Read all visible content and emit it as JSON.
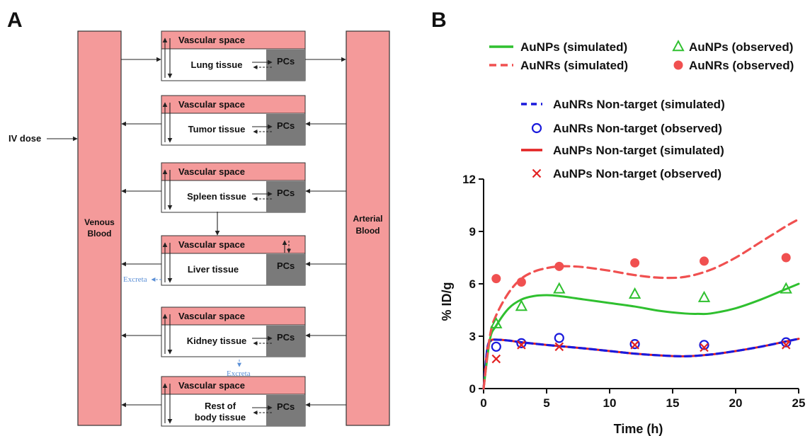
{
  "panel_a": {
    "letter": "A",
    "iv_dose": "IV dose",
    "venous": [
      "Venous",
      "Blood"
    ],
    "arterial": [
      "Arterial",
      "Blood"
    ],
    "vascular_label": "Vascular space",
    "pcs_label": "PCs",
    "excreta_label": "Excreta",
    "compartments": [
      {
        "tissue": "Lung tissue"
      },
      {
        "tissue": "Tumor tissue"
      },
      {
        "tissue": "Spleen tissue"
      },
      {
        "tissue": "Liver  tissue"
      },
      {
        "tissue": "Kidney tissue"
      },
      {
        "tissue": [
          "Rest of",
          "body tissue"
        ]
      }
    ]
  },
  "panel_b": {
    "letter": "B",
    "legend": [
      {
        "label": "AuNPs (simulated)",
        "color": "#2fc02f",
        "style": "solid-line"
      },
      {
        "label": "AuNPs (observed)",
        "color": "#2fc02f",
        "style": "open-triangle"
      },
      {
        "label": "AuNRs (simulated)",
        "color": "#f05050",
        "style": "dashed-line"
      },
      {
        "label": "AuNRs (observed)",
        "color": "#f05050",
        "style": "filled-circle"
      },
      {
        "label": "AuNRs Non-target (simulated)",
        "color": "#1a1adc",
        "style": "dashed-line"
      },
      {
        "label": "AuNRs Non-target (observed)",
        "color": "#1a1adc",
        "style": "open-circle"
      },
      {
        "label": "AuNPs Non-target (simulated)",
        "color": "#e32222",
        "style": "solid-line"
      },
      {
        "label": "AuNPs Non-target (observed)",
        "color": "#e32222",
        "style": "cross"
      }
    ]
  },
  "chart_data": {
    "type": "line",
    "xlabel": "Time (h)",
    "ylabel": "% ID/g",
    "xlim": [
      0,
      25
    ],
    "ylim": [
      0,
      12
    ],
    "xticks": [
      0,
      5,
      10,
      15,
      20,
      25
    ],
    "yticks": [
      0,
      3,
      6,
      9,
      12
    ],
    "series": [
      {
        "name": "AuNPs (simulated)",
        "kind": "line",
        "color": "#2fc02f",
        "dash": false,
        "x": [
          0,
          0.5,
          1,
          2,
          3,
          4,
          5,
          6,
          8,
          10,
          12,
          14,
          16,
          17,
          18,
          20,
          22,
          24,
          25
        ],
        "y": [
          0,
          2.8,
          3.6,
          4.6,
          5.1,
          5.3,
          5.35,
          5.3,
          5.1,
          4.9,
          4.7,
          4.45,
          4.3,
          4.28,
          4.3,
          4.6,
          5.1,
          5.7,
          6.0
        ]
      },
      {
        "name": "AuNPs (observed)",
        "kind": "scatter",
        "marker": "triangle-open",
        "color": "#2fc02f",
        "x": [
          1,
          3,
          6,
          12,
          17.5,
          24
        ],
        "y": [
          3.7,
          4.7,
          5.7,
          5.4,
          5.2,
          5.7
        ]
      },
      {
        "name": "AuNRs (simulated)",
        "kind": "line",
        "color": "#f05050",
        "dash": true,
        "x": [
          0,
          0.5,
          1,
          2,
          3,
          4,
          5,
          6,
          7,
          8,
          10,
          12,
          14,
          16,
          18,
          20,
          22,
          24,
          25
        ],
        "y": [
          0,
          3.0,
          4.2,
          5.5,
          6.3,
          6.7,
          6.9,
          7.0,
          7.0,
          6.95,
          6.75,
          6.5,
          6.35,
          6.4,
          6.8,
          7.5,
          8.4,
          9.3,
          9.7
        ]
      },
      {
        "name": "AuNRs (observed)",
        "kind": "scatter",
        "marker": "circle-filled",
        "color": "#f05050",
        "x": [
          1,
          3,
          6,
          12,
          17.5,
          24
        ],
        "y": [
          6.3,
          6.1,
          7.0,
          7.2,
          7.3,
          7.5
        ]
      },
      {
        "name": "AuNRs Non-target (simulated)",
        "kind": "line",
        "color": "#1a1adc",
        "dash": true,
        "x": [
          0,
          0.3,
          0.6,
          1,
          2,
          3,
          5,
          8,
          10,
          12,
          14,
          16,
          18,
          20,
          22,
          24,
          25
        ],
        "y": [
          0,
          2.3,
          2.75,
          2.8,
          2.75,
          2.65,
          2.5,
          2.3,
          2.15,
          2.0,
          1.9,
          1.85,
          1.95,
          2.15,
          2.4,
          2.7,
          2.85
        ]
      },
      {
        "name": "AuNRs Non-target (observed)",
        "kind": "scatter",
        "marker": "circle-open",
        "color": "#1a1adc",
        "x": [
          1,
          3,
          6,
          12,
          17.5,
          24
        ],
        "y": [
          2.4,
          2.6,
          2.9,
          2.55,
          2.5,
          2.65
        ]
      },
      {
        "name": "AuNPs Non-target (simulated)",
        "kind": "line",
        "color": "#e32222",
        "dash": false,
        "x": [
          0,
          0.3,
          0.6,
          1,
          2,
          3,
          5,
          8,
          10,
          12,
          14,
          16,
          18,
          20,
          22,
          24,
          25
        ],
        "y": [
          0,
          2.3,
          2.75,
          2.8,
          2.75,
          2.65,
          2.5,
          2.3,
          2.15,
          2.0,
          1.9,
          1.85,
          1.95,
          2.15,
          2.4,
          2.7,
          2.85
        ]
      },
      {
        "name": "AuNPs Non-target (observed)",
        "kind": "scatter",
        "marker": "cross",
        "color": "#e32222",
        "x": [
          1,
          3,
          6,
          12,
          17.5,
          24
        ],
        "y": [
          1.7,
          2.5,
          2.4,
          2.5,
          2.35,
          2.5
        ]
      }
    ]
  }
}
